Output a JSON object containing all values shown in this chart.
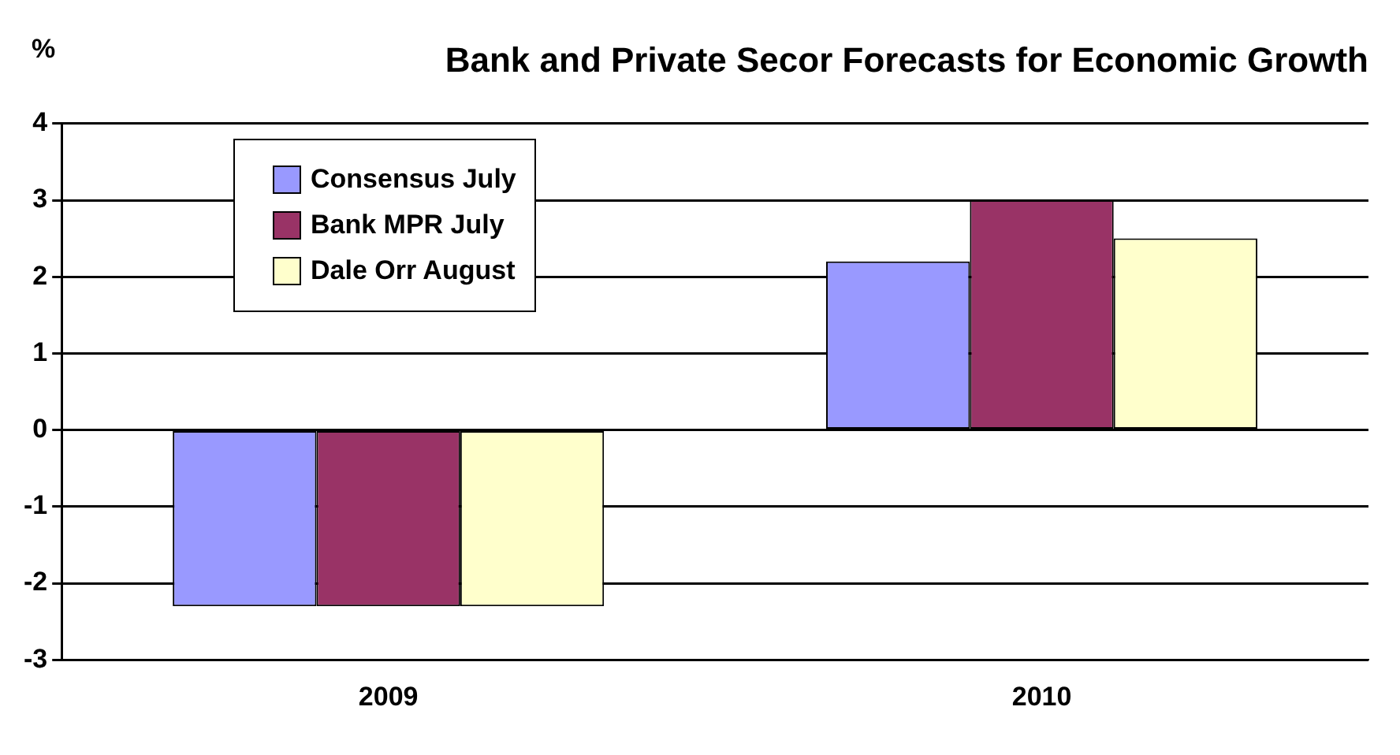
{
  "chart_data": {
    "type": "bar",
    "title": "Bank and Private Secor Forecasts for Economic Growth",
    "ylabel": "%",
    "categories": [
      "2009",
      "2010"
    ],
    "series": [
      {
        "name": "Consensus July",
        "color": "#9999ff",
        "values": [
          -2.3,
          2.2
        ]
      },
      {
        "name": "Bank MPR July",
        "color": "#993366",
        "values": [
          -2.3,
          3.0
        ]
      },
      {
        "name": "Dale Orr August",
        "color": "#ffffcc",
        "values": [
          -2.3,
          2.5
        ]
      }
    ],
    "ylim": [
      -3,
      4
    ],
    "yticks": [
      -3,
      -2,
      -1,
      0,
      1,
      2,
      3,
      4
    ],
    "grid": "y",
    "legend": "top left"
  }
}
